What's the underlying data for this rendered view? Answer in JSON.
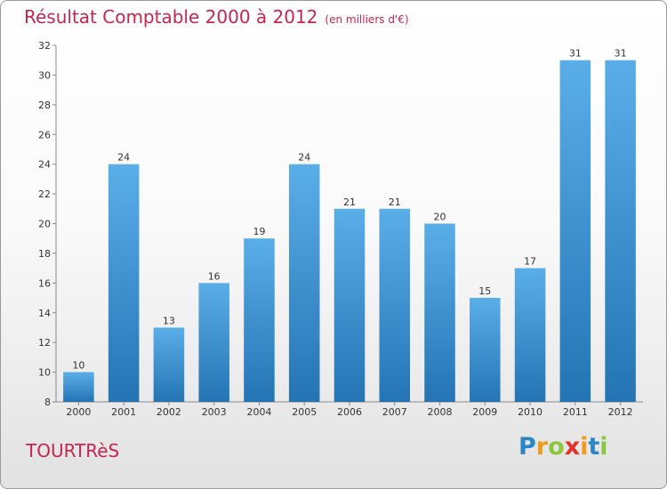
{
  "header": {
    "title": "Résultat Comptable 2000 à 2012",
    "unit": "(en milliers d'€)"
  },
  "footer": {
    "commune": "TOURTRèS",
    "logo_letters": [
      "P",
      "r",
      "o",
      "x",
      "i",
      "t",
      "i"
    ],
    "logo_colors": [
      "#2a87c6",
      "#f39a1d",
      "#8cc63f",
      "#e4322b",
      "#f39a1d",
      "#2a87c6",
      "#8cc63f"
    ]
  },
  "colors": {
    "title": "#c8254e",
    "bar_light": "#5aaee8",
    "bar_dark": "#2474b4",
    "grid": "#d0d0d0"
  },
  "chart_data": {
    "type": "bar",
    "title": "Résultat Comptable 2000 à 2012",
    "subtitle": "(en milliers d'€)",
    "xlabel": "",
    "ylabel": "",
    "categories": [
      "2000",
      "2001",
      "2002",
      "2003",
      "2004",
      "2005",
      "2006",
      "2007",
      "2008",
      "2009",
      "2010",
      "2011",
      "2012"
    ],
    "values": [
      10,
      24,
      13,
      16,
      19,
      24,
      21,
      21,
      20,
      15,
      17,
      31,
      31
    ],
    "ylim": [
      8,
      32
    ],
    "yticks": [
      8,
      10,
      12,
      14,
      16,
      18,
      20,
      22,
      24,
      26,
      28,
      30,
      32
    ],
    "grid": false,
    "data_labels": true
  }
}
